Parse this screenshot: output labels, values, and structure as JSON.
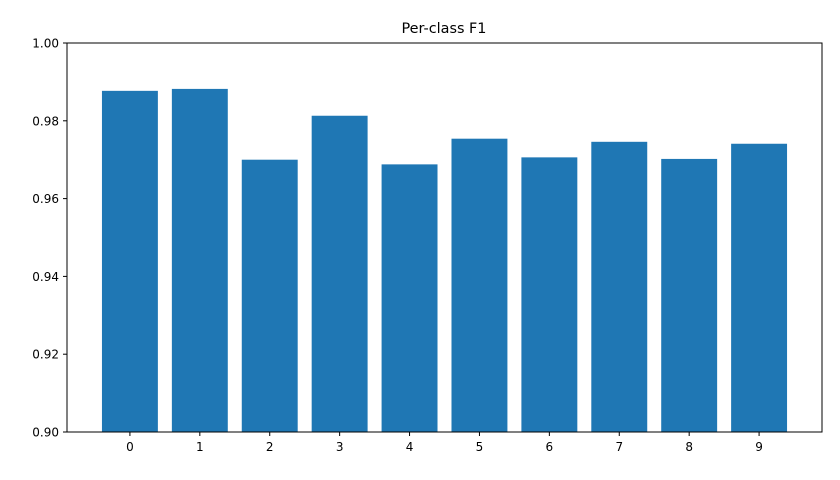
{
  "chart_data": {
    "type": "bar",
    "title": "Per-class F1",
    "xlabel": "",
    "ylabel": "",
    "categories": [
      "0",
      "1",
      "2",
      "3",
      "4",
      "5",
      "6",
      "7",
      "8",
      "9"
    ],
    "values": [
      0.9877,
      0.9882,
      0.97,
      0.9813,
      0.9688,
      0.9754,
      0.9706,
      0.9746,
      0.9702,
      0.9741
    ],
    "ylim": [
      0.9,
      1.0
    ],
    "yticks": [
      "0.90",
      "0.92",
      "0.94",
      "0.96",
      "0.98",
      "1.00"
    ],
    "ytick_values": [
      0.9,
      0.92,
      0.94,
      0.96,
      0.98,
      1.0
    ],
    "bar_color": "#1f77b4",
    "grid": false,
    "legend": "none"
  }
}
